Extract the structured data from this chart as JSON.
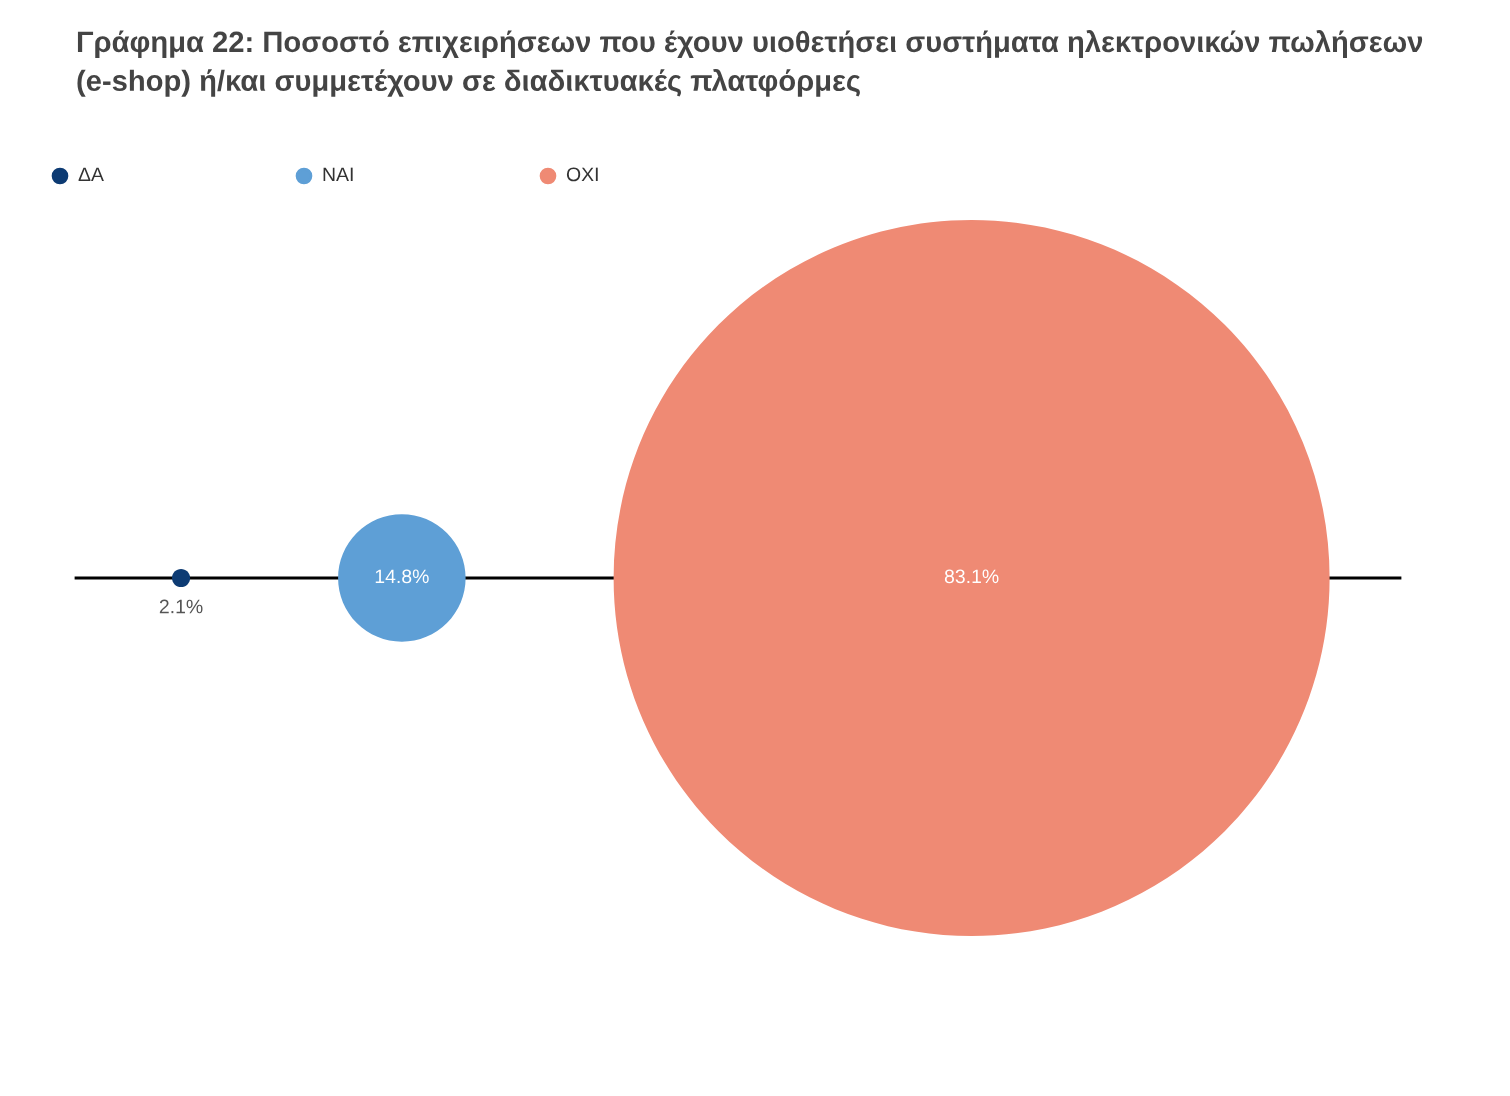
{
  "chart_data": {
    "type": "other",
    "title": "Γράφημα 22: Ποσοστό επιχειρήσεων που έχουν υιοθετήσει συστήματα ηλεκτρονικών πωλήσεων (e-shop) ή/και συμμετέχουν σε διαδικτυακές πλατφόρμες",
    "categories": [
      "ΔΑ",
      "ΝΑΙ",
      "ΟΧΙ"
    ],
    "values": [
      2.1,
      14.8,
      83.1
    ],
    "value_labels": [
      "2.1%",
      "14.8%",
      "83.1%"
    ],
    "colors": [
      "#0d3b73",
      "#5e9fd6",
      "#ef8a74"
    ]
  }
}
